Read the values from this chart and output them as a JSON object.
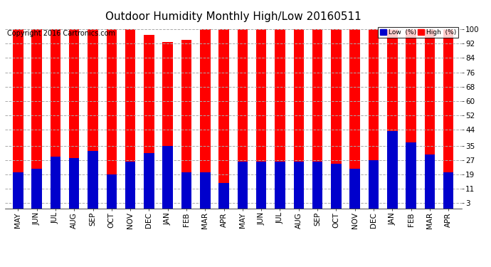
{
  "title": "Outdoor Humidity Monthly High/Low 20160511",
  "copyright": "Copyright 2016 Cartronics.com",
  "legend_low": "Low  (%)",
  "legend_high": "High  (%)",
  "months": [
    "MAY",
    "JUN",
    "JUL",
    "AUG",
    "SEP",
    "OCT",
    "NOV",
    "DEC",
    "JAN",
    "FEB",
    "MAR",
    "APR",
    "MAY",
    "JUN",
    "JUL",
    "AUG",
    "SEP",
    "OCT",
    "NOV",
    "DEC",
    "JAN",
    "FEB",
    "MAR",
    "APR"
  ],
  "high_values": [
    100,
    100,
    100,
    100,
    100,
    100,
    100,
    97,
    93,
    94,
    100,
    100,
    100,
    100,
    100,
    100,
    100,
    100,
    100,
    100,
    100,
    100,
    100,
    100
  ],
  "low_values": [
    20,
    22,
    29,
    28,
    32,
    19,
    26,
    31,
    35,
    20,
    20,
    14,
    26,
    26,
    26,
    26,
    26,
    25,
    22,
    27,
    43,
    37,
    30,
    20
  ],
  "high_color": "#ff0000",
  "low_color": "#0000cc",
  "bg_color": "#ffffff",
  "plot_bg_color": "#ffffff",
  "grid_color": "#aaaaaa",
  "title_fontsize": 11,
  "copyright_fontsize": 7,
  "tick_fontsize": 7.5,
  "ytick_values": [
    3,
    11,
    19,
    27,
    35,
    44,
    52,
    60,
    68,
    76,
    84,
    92,
    100
  ],
  "ylim_min": 0,
  "ylim_max": 103,
  "bar_width": 0.55
}
